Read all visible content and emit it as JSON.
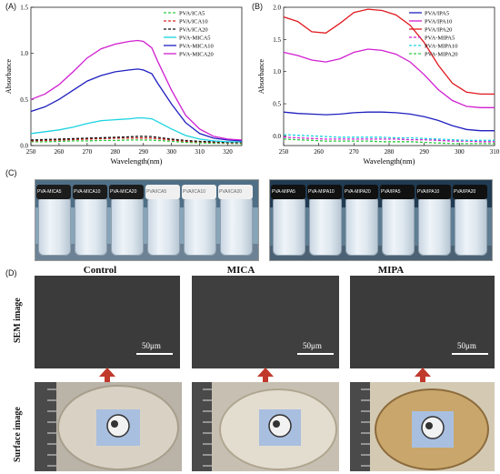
{
  "panel_labels": {
    "a": "(A)",
    "b": "(B)",
    "c": "(C)",
    "d": "(D)"
  },
  "chart_data": [
    {
      "type": "line",
      "xlabel": "Wavelength(nm)",
      "ylabel": "Absorbance",
      "xlim": [
        250,
        325
      ],
      "ylim": [
        0,
        1.5
      ],
      "xticks": [
        250,
        260,
        270,
        280,
        290,
        300,
        310,
        320
      ],
      "yticks": [
        0.0,
        0.5,
        1.0,
        1.5
      ],
      "legend": "top-right",
      "x": [
        250,
        255,
        260,
        265,
        270,
        275,
        280,
        285,
        288,
        290,
        293,
        295,
        300,
        305,
        310,
        315,
        320,
        325
      ],
      "series": [
        {
          "name": "PVA/ICA5",
          "color": "#2ecc40",
          "dash": "3,2",
          "values": [
            0.04,
            0.04,
            0.045,
            0.05,
            0.05,
            0.055,
            0.055,
            0.06,
            0.06,
            0.06,
            0.058,
            0.055,
            0.045,
            0.035,
            0.03,
            0.025,
            0.025,
            0.02
          ]
        },
        {
          "name": "PVA/ICA10",
          "color": "#d62728",
          "dash": "3,2",
          "values": [
            0.05,
            0.055,
            0.06,
            0.065,
            0.07,
            0.075,
            0.08,
            0.08,
            0.082,
            0.082,
            0.08,
            0.075,
            0.06,
            0.045,
            0.04,
            0.035,
            0.03,
            0.03
          ]
        },
        {
          "name": "PVA/ICA20",
          "color": "#111111",
          "dash": "3,2",
          "values": [
            0.06,
            0.065,
            0.07,
            0.075,
            0.08,
            0.085,
            0.09,
            0.095,
            0.1,
            0.1,
            0.098,
            0.09,
            0.07,
            0.055,
            0.045,
            0.04,
            0.035,
            0.035
          ]
        },
        {
          "name": "PVA-MICA5",
          "color": "#19d3e0",
          "dash": "",
          "values": [
            0.13,
            0.15,
            0.17,
            0.2,
            0.24,
            0.27,
            0.28,
            0.29,
            0.3,
            0.3,
            0.29,
            0.26,
            0.18,
            0.11,
            0.07,
            0.05,
            0.04,
            0.04
          ]
        },
        {
          "name": "PVA-MICA10",
          "color": "#1f1fbf",
          "dash": "",
          "values": [
            0.37,
            0.42,
            0.5,
            0.6,
            0.7,
            0.76,
            0.8,
            0.82,
            0.83,
            0.82,
            0.78,
            0.68,
            0.45,
            0.25,
            0.13,
            0.08,
            0.06,
            0.05
          ]
        },
        {
          "name": "PVA-MICA20",
          "color": "#d11fd1",
          "dash": "",
          "values": [
            0.5,
            0.56,
            0.66,
            0.8,
            0.95,
            1.05,
            1.1,
            1.13,
            1.14,
            1.13,
            1.06,
            0.92,
            0.6,
            0.33,
            0.18,
            0.1,
            0.07,
            0.06
          ]
        }
      ]
    },
    {
      "type": "line",
      "xlabel": "Wavelength(nm)",
      "ylabel": "Absorbance",
      "xlim": [
        250,
        310
      ],
      "ylim": [
        -0.15,
        2.0
      ],
      "xticks": [
        250,
        260,
        270,
        280,
        290,
        300,
        310
      ],
      "yticks": [
        0.0,
        0.5,
        1.0,
        1.5,
        2.0
      ],
      "legend": "top-right",
      "x": [
        250,
        254,
        258,
        262,
        266,
        270,
        274,
        278,
        282,
        286,
        290,
        294,
        298,
        302,
        306,
        310
      ],
      "series": [
        {
          "name": "PVA/IPA5",
          "color": "#1f1fbf",
          "dash": "",
          "values": [
            0.37,
            0.35,
            0.34,
            0.33,
            0.34,
            0.36,
            0.37,
            0.37,
            0.36,
            0.34,
            0.3,
            0.24,
            0.16,
            0.1,
            0.08,
            0.08
          ]
        },
        {
          "name": "PVA/IPA10",
          "color": "#d11fd1",
          "dash": "",
          "values": [
            1.3,
            1.25,
            1.18,
            1.15,
            1.2,
            1.3,
            1.35,
            1.33,
            1.27,
            1.15,
            0.95,
            0.72,
            0.55,
            0.46,
            0.44,
            0.44
          ]
        },
        {
          "name": "PVA/IPA20",
          "color": "#e0191f",
          "dash": "",
          "values": [
            1.85,
            1.78,
            1.62,
            1.6,
            1.75,
            1.92,
            1.97,
            1.95,
            1.88,
            1.72,
            1.45,
            1.1,
            0.82,
            0.68,
            0.65,
            0.65
          ]
        },
        {
          "name": "PVA-MIPA5",
          "color": "#d11fd1",
          "dash": "3,2",
          "values": [
            -0.02,
            -0.03,
            -0.04,
            -0.05,
            -0.05,
            -0.05,
            -0.05,
            -0.05,
            -0.05,
            -0.06,
            -0.06,
            -0.07,
            -0.08,
            -0.08,
            -0.09,
            -0.09
          ]
        },
        {
          "name": "PVA-MIPA10",
          "color": "#19d3e0",
          "dash": "3,2",
          "values": [
            0.02,
            0.01,
            0.0,
            -0.01,
            -0.02,
            -0.02,
            -0.02,
            -0.02,
            -0.03,
            -0.03,
            -0.04,
            -0.05,
            -0.06,
            -0.07,
            -0.07,
            -0.07
          ]
        },
        {
          "name": "PVA-MIPA20",
          "color": "#2ecc40",
          "dash": "3,2",
          "values": [
            -0.05,
            -0.06,
            -0.07,
            -0.08,
            -0.08,
            -0.08,
            -0.08,
            -0.09,
            -0.09,
            -0.09,
            -0.1,
            -0.11,
            -0.12,
            -0.12,
            -0.12,
            -0.12
          ]
        }
      ]
    }
  ],
  "vials_left": [
    "PVA-MICA5",
    "PVA-MICA10",
    "PVA-MICA20",
    "PVA/ICA5",
    "PVA/ICA10",
    "PVA/ICA20"
  ],
  "vials_right": [
    "PVA-MIPA5",
    "PVA-MIPA10",
    "PVA-MIPA20",
    "PVA/IPA5",
    "PVA/IPA10",
    "PVA/IPA20"
  ],
  "sem_columns": [
    "Control",
    "MICA",
    "MIPA"
  ],
  "row_labels": {
    "sem": "SEM image",
    "surface": "Surface image"
  },
  "scale_label": "50μm"
}
